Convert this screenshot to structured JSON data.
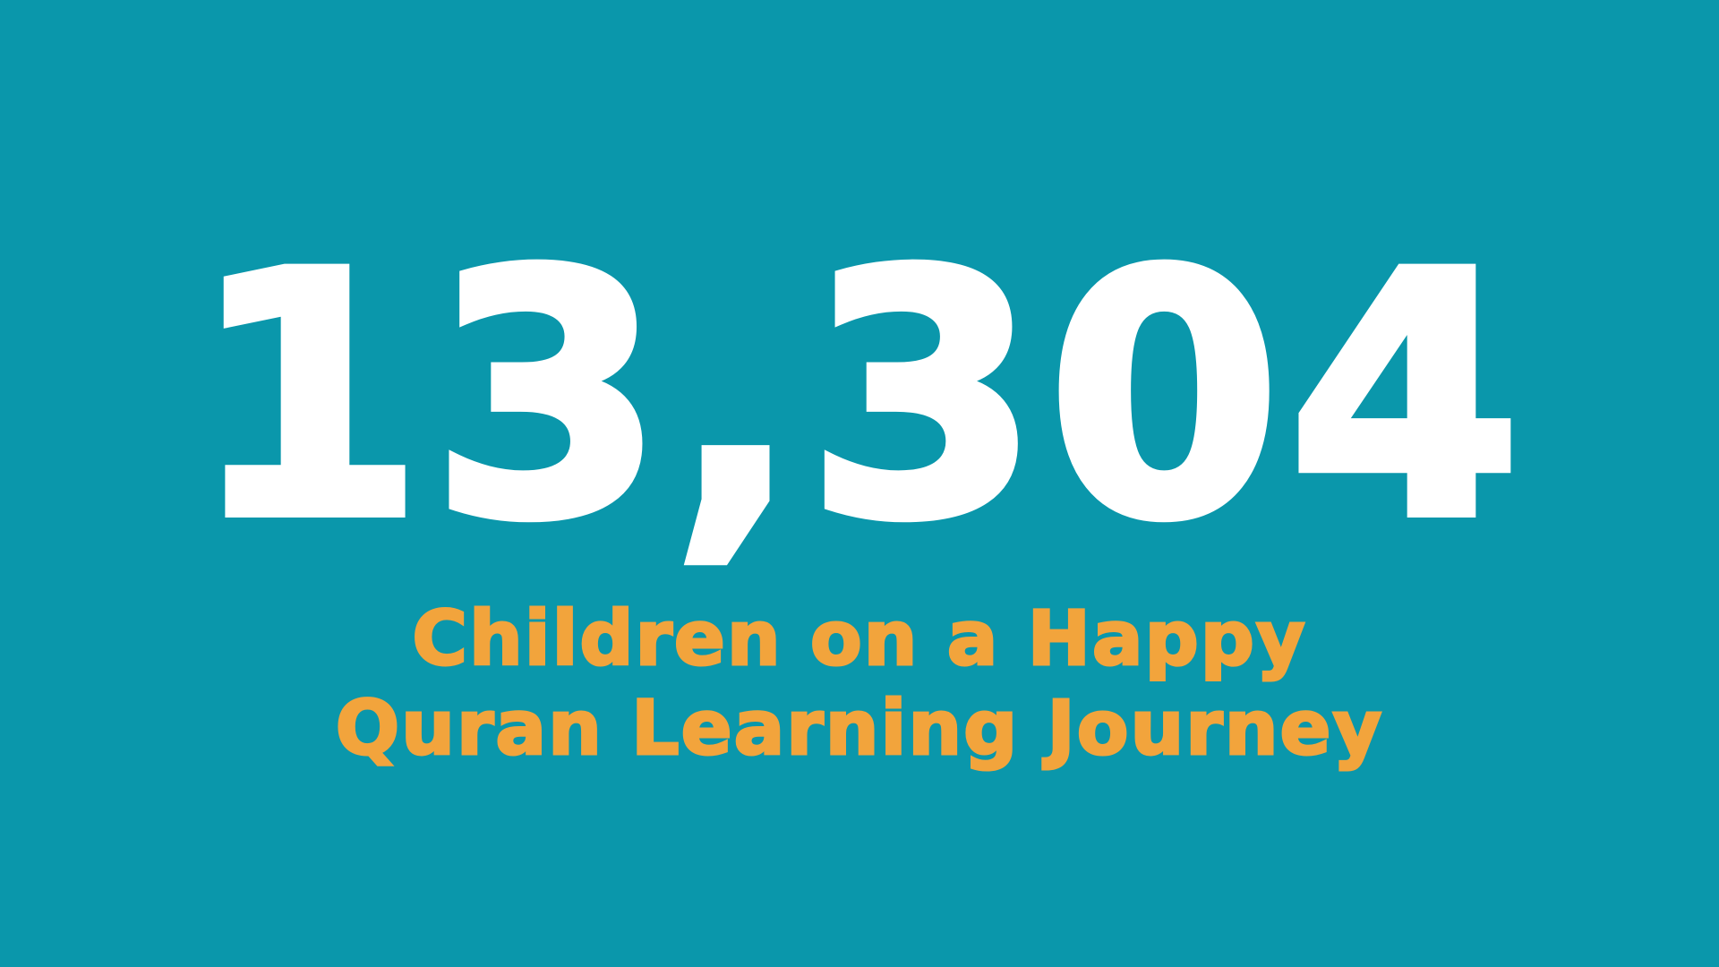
{
  "poster": {
    "stat_value": "13,304",
    "caption_line1": "Children on a Happy",
    "caption_line2": "Quran Learning Journey",
    "caption_full_text": "Children on a Happy Quran Learning Journey"
  },
  "colors": {
    "background_teal": "#0A97AB",
    "stat_number_white": "#FFFFFF",
    "caption_orange": "#F2A43C"
  }
}
